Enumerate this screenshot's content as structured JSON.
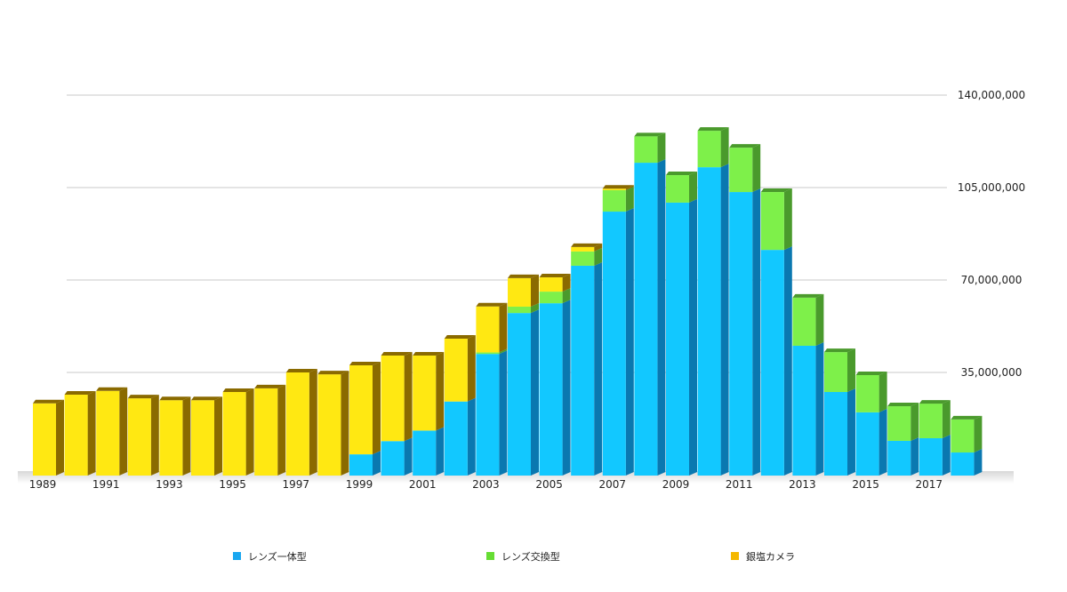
{
  "chart_data": {
    "type": "bar",
    "stacked": true,
    "title": "",
    "xlabel": "",
    "ylabel": "",
    "ylim": [
      0,
      140000000
    ],
    "y_ticks": [
      "35,000,000",
      "70,000,000",
      "105,000,000",
      "140,000,000"
    ],
    "y_tick_values": [
      35000000,
      70000000,
      105000000,
      140000000
    ],
    "y_axis_side": "right",
    "grid": true,
    "legend_position": "bottom",
    "categories": [
      "1989",
      "1990",
      "1991",
      "1992",
      "1993",
      "1994",
      "1995",
      "1996",
      "1997",
      "1998",
      "1999",
      "2000",
      "2001",
      "2002",
      "2003",
      "2004",
      "2005",
      "2006",
      "2007",
      "2008",
      "2009",
      "2010",
      "2011",
      "2012",
      "2013",
      "2014",
      "2015",
      "2016",
      "2017",
      "2018"
    ],
    "x_tick_labels": [
      "1989",
      "1991",
      "1993",
      "1995",
      "1997",
      "1999",
      "2001",
      "2003",
      "2005",
      "2007",
      "2009",
      "2011",
      "2013",
      "2015",
      "2017"
    ],
    "series": [
      {
        "name": "レンズ一体型",
        "color": "#1aa7f0",
        "values": [
          0,
          0,
          0,
          0,
          0,
          0,
          0,
          0,
          0,
          0,
          4000000,
          9000000,
          13000000,
          24000000,
          42000000,
          57500000,
          61200000,
          75400000,
          95900000,
          114400000,
          99300000,
          112700000,
          103300000,
          81400000,
          45100000,
          27600000,
          19900000,
          9100000,
          10100000,
          4700000
        ]
      },
      {
        "name": "レンズ交換型",
        "color": "#66dd33",
        "values": [
          0,
          0,
          0,
          0,
          0,
          0,
          0,
          0,
          0,
          0,
          0,
          0,
          0,
          0,
          600000,
          2400000,
          4400000,
          5400000,
          8100000,
          10000000,
          10400000,
          13800000,
          16800000,
          21900000,
          18200000,
          15100000,
          14100000,
          13100000,
          13100000,
          12500000
        ]
      },
      {
        "name": "銀塩カメラ",
        "color": "#f5b800",
        "values": [
          23300000,
          26600000,
          28000000,
          25200000,
          24500000,
          24500000,
          27600000,
          29000000,
          35000000,
          34300000,
          33700000,
          32400000,
          28400000,
          23800000,
          17400000,
          10800000,
          5400000,
          1700000,
          600000,
          0,
          0,
          0,
          0,
          0,
          0,
          0,
          0,
          0,
          0,
          0
        ]
      }
    ]
  }
}
